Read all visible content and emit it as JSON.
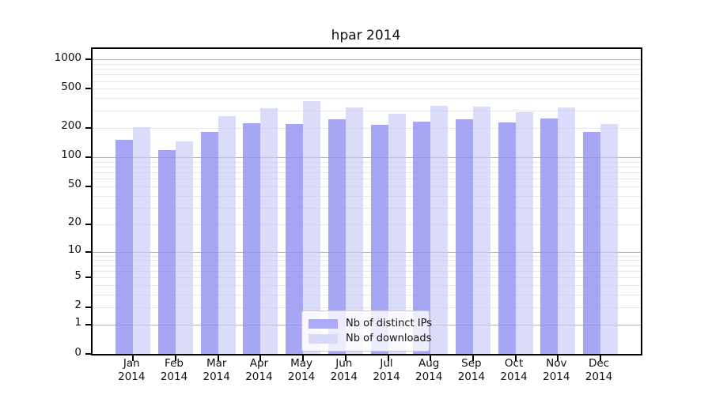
{
  "title": "hpar 2014",
  "chart_data": {
    "type": "bar",
    "title": "hpar 2014",
    "categories": [
      "Jan 2014",
      "Feb 2014",
      "Mar 2014",
      "Apr 2014",
      "May 2014",
      "Jun 2014",
      "Jul 2014",
      "Aug 2014",
      "Sep 2014",
      "Oct 2014",
      "Nov 2014",
      "Dec 2014"
    ],
    "series": [
      {
        "name": "Nb of distinct IPs",
        "values": [
          150,
          118,
          180,
          224,
          220,
          245,
          213,
          230,
          246,
          228,
          249,
          180
        ],
        "color": "#aaaaf7",
        "fill": "rgba(144,144,243,0.8)"
      },
      {
        "name": "Nb of downloads",
        "values": [
          202,
          144,
          265,
          316,
          375,
          320,
          277,
          336,
          330,
          287,
          322,
          220
        ],
        "color": "#d9d9f9",
        "fill": "rgba(200,200,247,0.65)"
      }
    ],
    "xlabel": "",
    "ylabel": "",
    "yscale": "log10(value+1)",
    "ylim": [
      0,
      1290
    ],
    "yticks": [
      0,
      1,
      2,
      5,
      10,
      20,
      50,
      100,
      200,
      500,
      1000
    ],
    "grid": "horizontal log major+minor",
    "legend_position": "lower center"
  }
}
